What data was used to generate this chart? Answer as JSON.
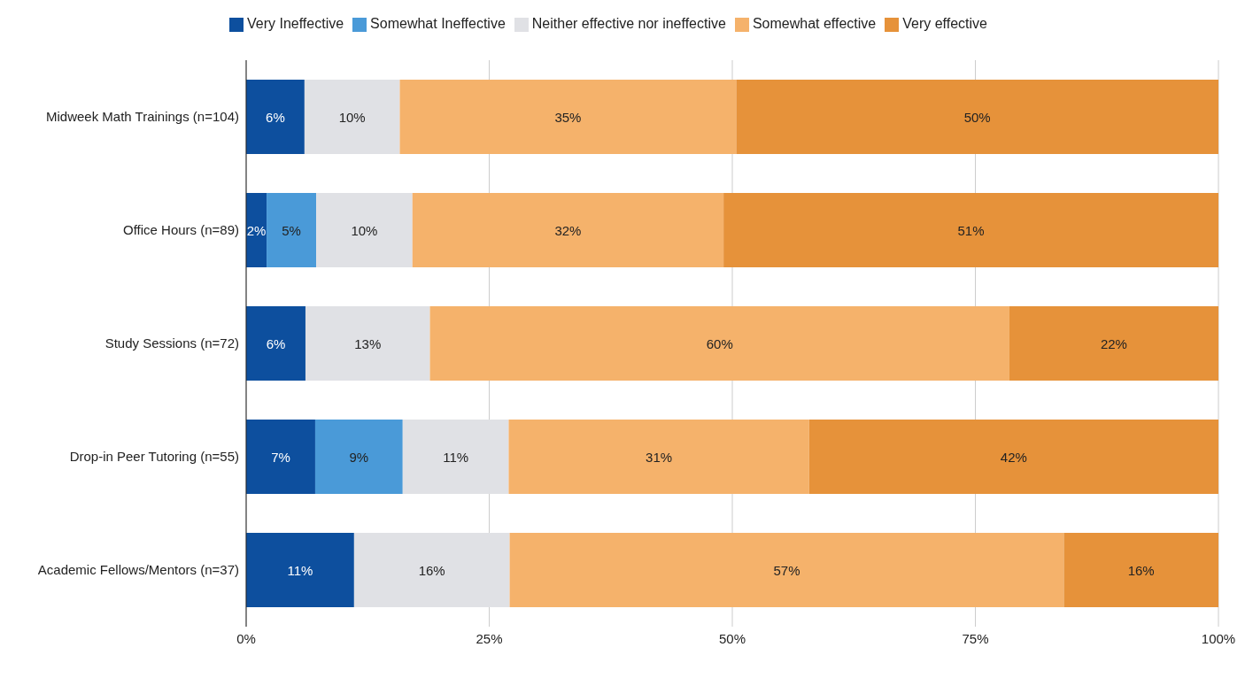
{
  "chart_data": {
    "type": "bar",
    "orientation": "horizontal",
    "stacked": true,
    "categories": [
      "Midweek Math Trainings (n=104)",
      "Office Hours (n=89)",
      "Study Sessions (n=72)",
      "Drop-in Peer Tutoring (n=55)",
      "Academic Fellows/Mentors (n=37)"
    ],
    "series": [
      {
        "name": "Very Ineffective",
        "color": "#0d4f9e",
        "values": [
          6.0,
          2.1,
          6.1,
          7.1,
          11.1
        ],
        "value_labels": [
          "6%",
          "2%",
          "6%",
          "7%",
          "11%"
        ]
      },
      {
        "name": "Somewhat Ineffective",
        "color": "#4a9ad8",
        "values": [
          null,
          5.1,
          null,
          9.0,
          null
        ],
        "value_labels": [
          null,
          "5%",
          null,
          "9%",
          null
        ]
      },
      {
        "name": "Neither effective nor ineffective",
        "color": "#e0e1e5",
        "values": [
          9.8,
          9.9,
          12.8,
          10.9,
          16.0
        ],
        "value_labels": [
          "10%",
          "10%",
          "13%",
          "11%",
          "16%"
        ]
      },
      {
        "name": "Somewhat effective",
        "color": "#f5b26b",
        "values": [
          34.6,
          32.0,
          59.6,
          30.9,
          57.0
        ],
        "value_labels": [
          "35%",
          "32%",
          "60%",
          "31%",
          "57%"
        ]
      },
      {
        "name": "Very effective",
        "color": "#e6923a",
        "values": [
          49.6,
          50.9,
          21.5,
          42.1,
          15.9
        ],
        "value_labels": [
          "50%",
          "51%",
          "22%",
          "42%",
          "16%"
        ]
      }
    ],
    "xlim": [
      0,
      100
    ],
    "xticks": [
      {
        "value": 0,
        "label": "0%"
      },
      {
        "value": 25,
        "label": "25%"
      },
      {
        "value": 50,
        "label": "50%"
      },
      {
        "value": 75,
        "label": "75%"
      },
      {
        "value": 100,
        "label": "100%"
      }
    ],
    "grid": "x",
    "legend": "top"
  }
}
